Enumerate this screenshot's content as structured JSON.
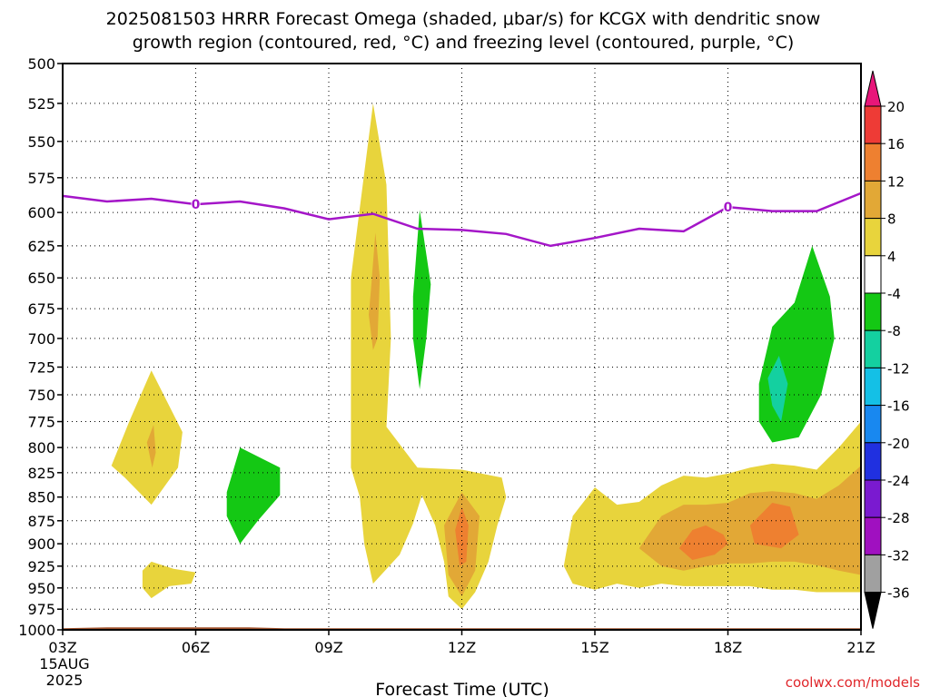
{
  "chart_data": {
    "type": "heatmap",
    "title_line1": "2025081503 HRRR Forecast Omega (shaded, μbar/s) for KCGX with dendritic snow",
    "title_line2": "growth region (contoured, red, °C) and freezing level (contoured, purple, °C)",
    "xlabel": "Forecast Time (UTC)",
    "ylabel": "",
    "x_ticks": [
      "03Z",
      "06Z",
      "09Z",
      "12Z",
      "15Z",
      "18Z",
      "21Z"
    ],
    "x_start_date": "15AUG",
    "x_start_year": "2025",
    "y_ticks": [
      500,
      525,
      550,
      575,
      600,
      625,
      650,
      675,
      700,
      725,
      750,
      775,
      800,
      825,
      850,
      875,
      900,
      925,
      950,
      975,
      1000
    ],
    "y_axis": {
      "reversed": true,
      "range": [
        1000,
        500
      ]
    },
    "x_range_hours": [
      3,
      21
    ],
    "grid": true,
    "colorbar_levels": [
      "20",
      "16",
      "12",
      "8",
      "4",
      "-4",
      "-8",
      "-12",
      "-16",
      "-20",
      "-24",
      "-28",
      "-32",
      "-36"
    ],
    "colors": {
      "over": "#e8167a",
      "gt16": "#ee3b36",
      "12to16": "#ee8030",
      "8to12": "#e2a836",
      "4to8": "#e8d43c",
      "neutral": "#ffffff",
      "m8to-4": "#14c814",
      "m12to-8": "#14d0a0",
      "m16to-12": "#14c0e6",
      "m20to-16": "#1888f0",
      "m24to-20": "#2030e0",
      "m28to-24": "#7a1ad0",
      "m32to-28": "#a010c0",
      "m36to-32": "#a0a0a0",
      "under": "#000000",
      "freezing_level": "#a416c8",
      "ground": "#a0522d"
    },
    "freezing_level": {
      "label": "0",
      "points": [
        [
          3,
          588
        ],
        [
          4,
          592
        ],
        [
          5,
          590
        ],
        [
          6,
          594
        ],
        [
          7,
          592
        ],
        [
          8,
          597
        ],
        [
          9,
          605
        ],
        [
          10,
          601
        ],
        [
          11,
          612
        ],
        [
          12,
          613
        ],
        [
          13,
          616
        ],
        [
          14,
          625
        ],
        [
          15,
          619
        ],
        [
          16,
          612
        ],
        [
          17,
          614
        ],
        [
          18,
          596
        ],
        [
          19,
          599
        ],
        [
          20,
          599
        ],
        [
          21,
          586
        ]
      ],
      "label_x": [
        6,
        18
      ]
    },
    "omega_regions": [
      {
        "level": "4to8",
        "points": [
          [
            4.1,
            818
          ],
          [
            4.5,
            775
          ],
          [
            5,
            728
          ],
          [
            5.7,
            785
          ],
          [
            5.6,
            820
          ],
          [
            5,
            858
          ],
          [
            4.4,
            830
          ]
        ]
      },
      {
        "level": "8to12",
        "points": [
          [
            4.9,
            795
          ],
          [
            5.05,
            778
          ],
          [
            5.1,
            805
          ],
          [
            5.02,
            820
          ]
        ]
      },
      {
        "level": "4to8",
        "points": [
          [
            4.8,
            930
          ],
          [
            5,
            920
          ],
          [
            5.5,
            928
          ],
          [
            6,
            932
          ],
          [
            5.9,
            945
          ],
          [
            5.4,
            948
          ],
          [
            5,
            962
          ],
          [
            4.8,
            950
          ]
        ]
      },
      {
        "level": "m8to-4",
        "points": [
          [
            6.7,
            845
          ],
          [
            7,
            800
          ],
          [
            7.9,
            820
          ],
          [
            7.9,
            848
          ],
          [
            7.4,
            875
          ],
          [
            7,
            900
          ],
          [
            6.7,
            870
          ]
        ]
      },
      {
        "level": "4to8",
        "points": [
          [
            9.5,
            820
          ],
          [
            9.5,
            650
          ],
          [
            10,
            525
          ],
          [
            10.3,
            580
          ],
          [
            10.4,
            700
          ],
          [
            10.3,
            780
          ],
          [
            11,
            820
          ],
          [
            12,
            822
          ],
          [
            12.9,
            830
          ],
          [
            13,
            850
          ],
          [
            12.8,
            880
          ],
          [
            12.6,
            920
          ],
          [
            12.3,
            955
          ],
          [
            12,
            975
          ],
          [
            11.7,
            960
          ],
          [
            11.6,
            920
          ],
          [
            11.4,
            880
          ],
          [
            11.1,
            848
          ],
          [
            10.9,
            878
          ],
          [
            10.6,
            912
          ],
          [
            10,
            945
          ],
          [
            9.8,
            900
          ],
          [
            9.7,
            850
          ]
        ]
      },
      {
        "level": "8to12",
        "points": [
          [
            9.95,
            660
          ],
          [
            10.05,
            615
          ],
          [
            10.15,
            650
          ],
          [
            10.1,
            700
          ],
          [
            10,
            710
          ],
          [
            9.9,
            680
          ]
        ]
      },
      {
        "level": "8to12",
        "points": [
          [
            11.6,
            880
          ],
          [
            12,
            845
          ],
          [
            12.4,
            870
          ],
          [
            12.3,
            930
          ],
          [
            12,
            960
          ],
          [
            11.7,
            935
          ]
        ]
      },
      {
        "level": "12to16",
        "points": [
          [
            11.85,
            885
          ],
          [
            12,
            860
          ],
          [
            12.15,
            880
          ],
          [
            12.1,
            920
          ],
          [
            11.95,
            925
          ]
        ]
      },
      {
        "level": "m8to-4",
        "points": [
          [
            10.9,
            665
          ],
          [
            11.05,
            598
          ],
          [
            11.3,
            655
          ],
          [
            11.2,
            700
          ],
          [
            11.05,
            745
          ],
          [
            10.9,
            700
          ]
        ]
      },
      {
        "level": "4to8",
        "points": [
          [
            14.3,
            925
          ],
          [
            14.5,
            870
          ],
          [
            15,
            840
          ],
          [
            15.5,
            858
          ],
          [
            16,
            855
          ],
          [
            16.5,
            838
          ],
          [
            17,
            828
          ],
          [
            17.5,
            830
          ],
          [
            18,
            826
          ],
          [
            18.5,
            820
          ],
          [
            19,
            816
          ],
          [
            19.5,
            818
          ],
          [
            20,
            822
          ],
          [
            20.5,
            800
          ],
          [
            21,
            775
          ],
          [
            21,
            955
          ],
          [
            20.5,
            955
          ],
          [
            20,
            955
          ],
          [
            19.5,
            952
          ],
          [
            19,
            952
          ],
          [
            18.5,
            948
          ],
          [
            18,
            948
          ],
          [
            17.5,
            948
          ],
          [
            17,
            948
          ],
          [
            16.5,
            945
          ],
          [
            16,
            950
          ],
          [
            15.5,
            945
          ],
          [
            15,
            952
          ],
          [
            14.5,
            945
          ]
        ]
      },
      {
        "level": "8to12",
        "points": [
          [
            16,
            905
          ],
          [
            16.5,
            870
          ],
          [
            17,
            858
          ],
          [
            17.5,
            858
          ],
          [
            18,
            856
          ],
          [
            18.5,
            846
          ],
          [
            19,
            844
          ],
          [
            19.5,
            846
          ],
          [
            20,
            852
          ],
          [
            20.5,
            838
          ],
          [
            21,
            818
          ],
          [
            21,
            935
          ],
          [
            20.5,
            930
          ],
          [
            20,
            924
          ],
          [
            19.5,
            920
          ],
          [
            19,
            920
          ],
          [
            18.5,
            922
          ],
          [
            18,
            922
          ],
          [
            17.5,
            925
          ],
          [
            17,
            930
          ],
          [
            16.5,
            925
          ]
        ]
      },
      {
        "level": "12to16",
        "points": [
          [
            16.9,
            905
          ],
          [
            17.2,
            885
          ],
          [
            17.5,
            880
          ],
          [
            17.9,
            890
          ],
          [
            18,
            900
          ],
          [
            17.7,
            912
          ],
          [
            17.2,
            918
          ]
        ]
      },
      {
        "level": "12to16",
        "points": [
          [
            18.5,
            880
          ],
          [
            19,
            856
          ],
          [
            19.4,
            860
          ],
          [
            19.6,
            890
          ],
          [
            19.2,
            905
          ],
          [
            18.6,
            900
          ]
        ]
      },
      {
        "level": "m8to-4",
        "points": [
          [
            18.7,
            740
          ],
          [
            19,
            690
          ],
          [
            19.5,
            670
          ],
          [
            19.9,
            625
          ],
          [
            20.3,
            665
          ],
          [
            20.4,
            700
          ],
          [
            20.1,
            750
          ],
          [
            19.6,
            790
          ],
          [
            19,
            795
          ],
          [
            18.7,
            775
          ]
        ]
      },
      {
        "level": "m12to-8",
        "points": [
          [
            18.9,
            735
          ],
          [
            19.15,
            715
          ],
          [
            19.35,
            740
          ],
          [
            19.2,
            775
          ],
          [
            19,
            760
          ]
        ]
      }
    ],
    "ground": {
      "top_pressure": 998,
      "points": [
        [
          3,
          998
        ],
        [
          4,
          997
        ],
        [
          7.2,
          997
        ],
        [
          8,
          998
        ],
        [
          21,
          998
        ]
      ]
    },
    "credit": "coolwx.com/models"
  }
}
